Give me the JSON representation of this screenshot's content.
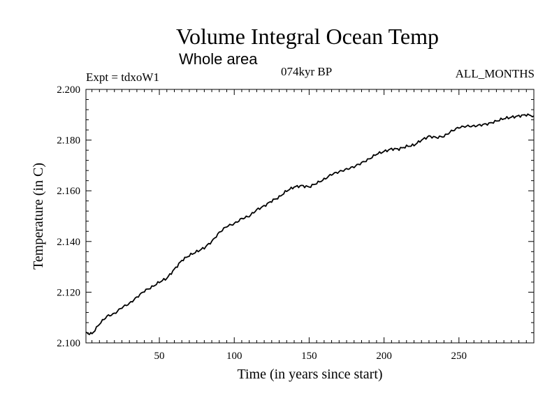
{
  "header": {
    "title": "Volume Integral Ocean Temp",
    "subtitle": "Whole area",
    "experiment": "Expt = tdxoW1",
    "period": "074kyr BP",
    "months": "ALL_MONTHS"
  },
  "chart_data": {
    "type": "line",
    "title": "Volume Integral Ocean Temp",
    "subtitle": "Whole area",
    "xlabel": "Time (in years since start)",
    "ylabel": "Temperature (in C)",
    "xlim": [
      1,
      300
    ],
    "ylim": [
      2.1,
      2.2
    ],
    "x_ticks": [
      50,
      100,
      150,
      200,
      250
    ],
    "y_ticks": [
      "2.100",
      "2.120",
      "2.140",
      "2.160",
      "2.180",
      "2.200"
    ],
    "grid": false,
    "series": [
      {
        "name": "Volume integral ocean temperature",
        "x": [
          1,
          5,
          10,
          15,
          20,
          25,
          30,
          35,
          40,
          45,
          50,
          55,
          60,
          65,
          70,
          75,
          80,
          85,
          90,
          95,
          100,
          105,
          110,
          115,
          120,
          125,
          130,
          135,
          140,
          145,
          150,
          155,
          160,
          165,
          170,
          175,
          180,
          185,
          190,
          195,
          200,
          205,
          210,
          215,
          220,
          225,
          230,
          235,
          240,
          245,
          250,
          255,
          260,
          265,
          270,
          275,
          280,
          285,
          290,
          295,
          300
        ],
        "values": [
          2.104,
          2.1035,
          2.1075,
          2.1105,
          2.1115,
          2.114,
          2.1155,
          2.118,
          2.1205,
          2.122,
          2.124,
          2.1255,
          2.129,
          2.1325,
          2.1345,
          2.136,
          2.1375,
          2.14,
          2.1435,
          2.146,
          2.147,
          2.149,
          2.15,
          2.1525,
          2.154,
          2.156,
          2.1575,
          2.16,
          2.1615,
          2.162,
          2.1615,
          2.163,
          2.1645,
          2.1665,
          2.1675,
          2.1685,
          2.1695,
          2.171,
          2.1725,
          2.1745,
          2.1755,
          2.1765,
          2.1765,
          2.1775,
          2.178,
          2.18,
          2.1815,
          2.181,
          2.1815,
          2.1835,
          2.185,
          2.1855,
          2.1855,
          2.186,
          2.1865,
          2.1875,
          2.1885,
          2.189,
          2.1895,
          2.19,
          2.1895
        ]
      }
    ]
  }
}
